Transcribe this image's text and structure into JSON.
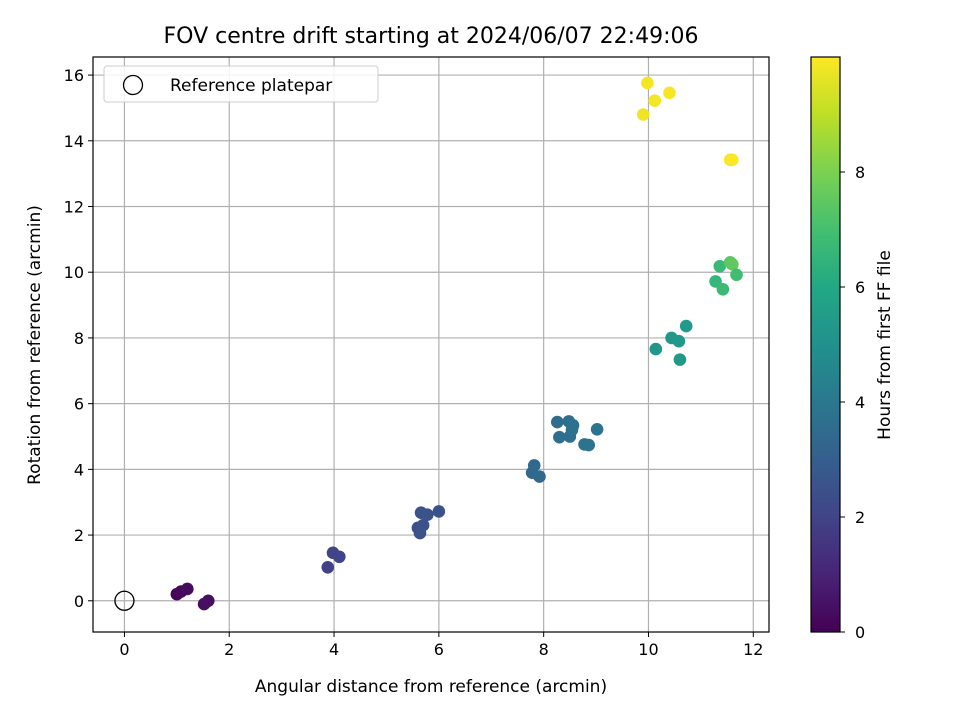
{
  "chart_data": {
    "type": "scatter",
    "title": "FOV centre drift starting at 2024/06/07 22:49:06",
    "xlabel": "Angular distance from reference (arcmin)",
    "ylabel": "Rotation from reference (arcmin)",
    "xlim": [
      -0.6,
      12.3
    ],
    "ylim": [
      -0.95,
      16.55
    ],
    "xticks": [
      0,
      2,
      4,
      6,
      8,
      10,
      12
    ],
    "yticks": [
      0,
      2,
      4,
      6,
      8,
      10,
      12,
      14,
      16
    ],
    "grid": true,
    "legend": {
      "position": "top-left",
      "label": "Reference platepar"
    },
    "reference_point": {
      "x": 0,
      "y": 0
    },
    "colorbar": {
      "label": "Hours from first FF file",
      "range": [
        0,
        10
      ],
      "ticks": [
        0,
        2,
        4,
        6,
        8
      ],
      "colormap": "viridis"
    },
    "points": [
      {
        "x": 1.0,
        "y": 0.2,
        "hours": 0.15
      },
      {
        "x": 1.08,
        "y": 0.28,
        "hours": 0.2
      },
      {
        "x": 1.2,
        "y": 0.36,
        "hours": 0.3
      },
      {
        "x": 1.52,
        "y": -0.1,
        "hours": 0.35
      },
      {
        "x": 1.6,
        "y": 0.0,
        "hours": 0.4
      },
      {
        "x": 3.88,
        "y": 1.02,
        "hours": 1.95
      },
      {
        "x": 3.98,
        "y": 1.46,
        "hours": 2.0
      },
      {
        "x": 4.1,
        "y": 1.34,
        "hours": 2.05
      },
      {
        "x": 5.6,
        "y": 2.22,
        "hours": 2.4
      },
      {
        "x": 5.64,
        "y": 2.06,
        "hours": 2.45
      },
      {
        "x": 5.66,
        "y": 2.68,
        "hours": 2.5
      },
      {
        "x": 5.7,
        "y": 2.3,
        "hours": 2.5
      },
      {
        "x": 5.78,
        "y": 2.62,
        "hours": 2.55
      },
      {
        "x": 6.0,
        "y": 2.72,
        "hours": 2.6
      },
      {
        "x": 7.78,
        "y": 3.9,
        "hours": 3.3
      },
      {
        "x": 7.82,
        "y": 4.12,
        "hours": 3.35
      },
      {
        "x": 7.92,
        "y": 3.78,
        "hours": 3.4
      },
      {
        "x": 8.26,
        "y": 5.44,
        "hours": 3.55
      },
      {
        "x": 8.3,
        "y": 4.98,
        "hours": 3.6
      },
      {
        "x": 8.48,
        "y": 5.46,
        "hours": 3.65
      },
      {
        "x": 8.5,
        "y": 5.0,
        "hours": 3.65
      },
      {
        "x": 8.54,
        "y": 5.2,
        "hours": 3.7
      },
      {
        "x": 8.56,
        "y": 5.34,
        "hours": 3.7
      },
      {
        "x": 8.78,
        "y": 4.76,
        "hours": 3.75
      },
      {
        "x": 8.86,
        "y": 4.74,
        "hours": 3.8
      },
      {
        "x": 9.02,
        "y": 5.22,
        "hours": 3.85
      },
      {
        "x": 10.14,
        "y": 7.66,
        "hours": 5.2
      },
      {
        "x": 10.44,
        "y": 8.0,
        "hours": 5.25
      },
      {
        "x": 10.58,
        "y": 7.9,
        "hours": 5.3
      },
      {
        "x": 10.6,
        "y": 7.34,
        "hours": 5.35
      },
      {
        "x": 10.72,
        "y": 8.36,
        "hours": 5.4
      },
      {
        "x": 11.28,
        "y": 9.72,
        "hours": 6.6
      },
      {
        "x": 11.36,
        "y": 10.18,
        "hours": 6.7
      },
      {
        "x": 11.42,
        "y": 9.48,
        "hours": 6.75
      },
      {
        "x": 11.56,
        "y": 10.3,
        "hours": 7.4
      },
      {
        "x": 11.6,
        "y": 10.24,
        "hours": 7.5
      },
      {
        "x": 11.68,
        "y": 9.92,
        "hours": 6.9
      },
      {
        "x": 9.9,
        "y": 14.8,
        "hours": 9.8
      },
      {
        "x": 9.98,
        "y": 15.76,
        "hours": 9.85
      },
      {
        "x": 10.12,
        "y": 15.22,
        "hours": 9.85
      },
      {
        "x": 10.4,
        "y": 15.46,
        "hours": 9.9
      },
      {
        "x": 11.56,
        "y": 13.42,
        "hours": 9.95
      },
      {
        "x": 11.6,
        "y": 13.42,
        "hours": 9.95
      }
    ]
  }
}
